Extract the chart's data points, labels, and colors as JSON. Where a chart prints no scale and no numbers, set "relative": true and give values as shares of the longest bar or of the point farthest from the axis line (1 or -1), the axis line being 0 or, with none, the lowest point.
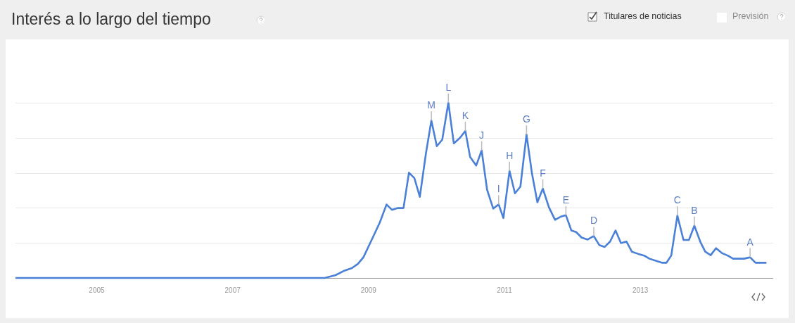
{
  "chart_data": {
    "type": "line",
    "title": "Interés a lo largo del tiempo",
    "relative": true,
    "grid": "y",
    "marker": "none",
    "line_style": "solid",
    "xlim": [
      2003.81,
      2014.96
    ],
    "xticks": [
      2005,
      2007,
      2009,
      2011,
      2013
    ],
    "x": [
      2003.81,
      2008.36,
      2008.52,
      2008.64,
      2008.76,
      2008.85,
      2008.93,
      2009.04,
      2009.17,
      2009.27,
      2009.35,
      2009.43,
      2009.52,
      2009.6,
      2009.68,
      2009.76,
      2009.85,
      2009.93,
      2010.01,
      2010.09,
      2010.18,
      2010.26,
      2010.35,
      2010.43,
      2010.5,
      2010.59,
      2010.67,
      2010.75,
      2010.84,
      2010.92,
      2010.99,
      2011.08,
      2011.16,
      2011.24,
      2011.33,
      2011.41,
      2011.49,
      2011.57,
      2011.66,
      2011.75,
      2011.83,
      2011.91,
      2011.99,
      2012.06,
      2012.14,
      2012.23,
      2012.32,
      2012.4,
      2012.48,
      2012.56,
      2012.64,
      2012.72,
      2012.8,
      2012.88,
      2012.97,
      2013.06,
      2013.14,
      2013.23,
      2013.32,
      2013.39,
      2013.46,
      2013.55,
      2013.64,
      2013.72,
      2013.8,
      2013.89,
      2013.96,
      2014.04,
      2014.12,
      2014.21,
      2014.29,
      2014.37,
      2014.53,
      2014.62,
      2014.7,
      2014.86
    ],
    "series": [
      {
        "color": "#4a80d8",
        "values": [
          0,
          0,
          0.016,
          0.04,
          0.056,
          0.081,
          0.118,
          0.208,
          0.315,
          0.419,
          0.389,
          0.399,
          0.399,
          0.601,
          0.57,
          0.463,
          0.711,
          0.899,
          0.752,
          0.789,
          1,
          0.768,
          0.799,
          0.839,
          0.691,
          0.642,
          0.728,
          0.503,
          0.396,
          0.42,
          0.342,
          0.611,
          0.483,
          0.521,
          0.819,
          0.597,
          0.432,
          0.51,
          0.403,
          0.332,
          0.349,
          0.358,
          0.271,
          0.262,
          0.231,
          0.219,
          0.239,
          0.188,
          0.177,
          0.208,
          0.271,
          0.199,
          0.208,
          0.15,
          0.138,
          0.128,
          0.11,
          0.098,
          0.087,
          0.087,
          0.128,
          0.356,
          0.217,
          0.217,
          0.298,
          0.204,
          0.15,
          0.13,
          0.17,
          0.141,
          0.128,
          0.11,
          0.11,
          0.118,
          0.087,
          0.087
        ]
      }
    ],
    "annotations": [
      {
        "text": "M",
        "x": 2009.93,
        "y": 0.899
      },
      {
        "text": "L",
        "x": 2010.18,
        "y": 1
      },
      {
        "text": "K",
        "x": 2010.43,
        "y": 0.839
      },
      {
        "text": "J",
        "x": 2010.67,
        "y": 0.728
      },
      {
        "text": "I",
        "x": 2010.92,
        "y": 0.42
      },
      {
        "text": "H",
        "x": 2011.08,
        "y": 0.611
      },
      {
        "text": "G",
        "x": 2011.33,
        "y": 0.819
      },
      {
        "text": "F",
        "x": 2011.57,
        "y": 0.51
      },
      {
        "text": "E",
        "x": 2011.91,
        "y": 0.358
      },
      {
        "text": "D",
        "x": 2012.32,
        "y": 0.239
      },
      {
        "text": "C",
        "x": 2013.55,
        "y": 0.356
      },
      {
        "text": "B",
        "x": 2013.8,
        "y": 0.298
      },
      {
        "text": "A",
        "x": 2014.62,
        "y": 0.118
      },
      "Titulares de noticias",
      "Previsión"
    ]
  }
}
